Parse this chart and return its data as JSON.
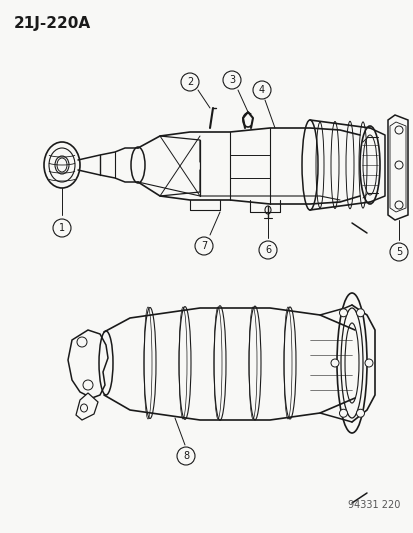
{
  "title": "21J-220A",
  "watermark": "94331 220",
  "bg": "#f8f8f6",
  "lc": "#1a1a1a",
  "figsize": [
    4.14,
    5.33
  ],
  "dpi": 100
}
